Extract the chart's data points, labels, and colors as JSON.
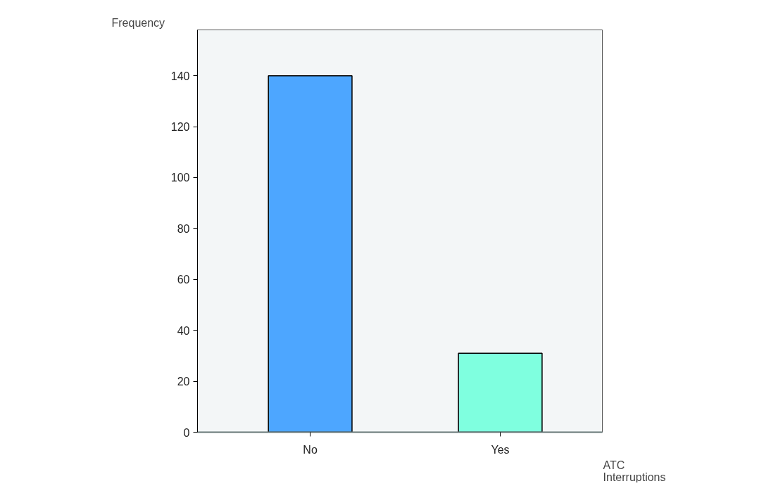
{
  "chart_data": {
    "type": "bar",
    "xlabel": "ATC Interruptions",
    "ylabel": "Frequency",
    "categories": [
      "No",
      "Yes"
    ],
    "colors": [
      "#4da6ff",
      "#7fffdf"
    ],
    "values": [
      140,
      31
    ],
    "ylim": [
      0,
      158
    ],
    "yticks": [
      0,
      20,
      40,
      60,
      80,
      100,
      120,
      140
    ],
    "grid": false
  }
}
